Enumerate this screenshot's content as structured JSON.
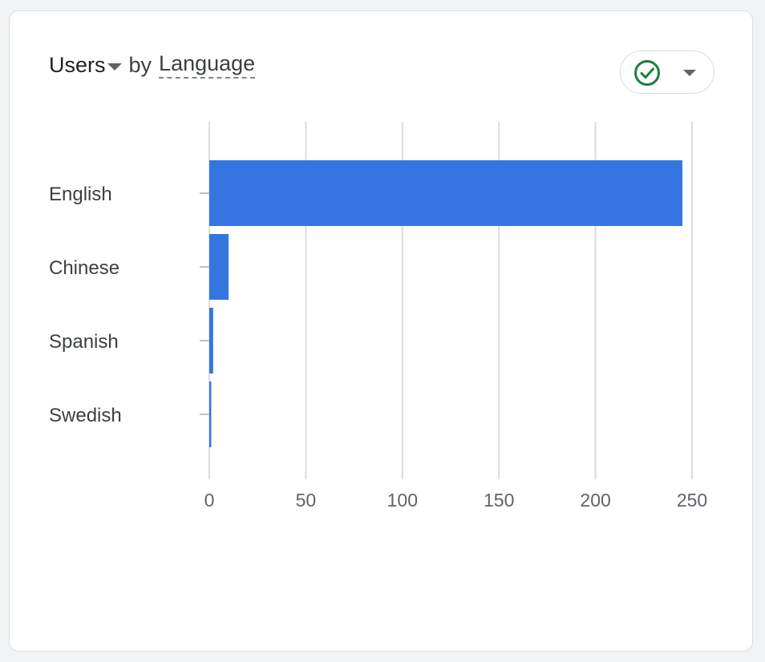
{
  "card": {
    "metric_label": "Users",
    "by_label": "by",
    "dimension_label": "Language",
    "status_icon": "check-circle-icon",
    "status_color": "#188038"
  },
  "chart_data": {
    "type": "bar",
    "orientation": "horizontal",
    "categories": [
      "English",
      "Chinese",
      "Spanish",
      "Swedish"
    ],
    "values": [
      245,
      10,
      2,
      1
    ],
    "xticks": [
      0,
      50,
      100,
      150,
      200,
      250
    ],
    "xlim": [
      0,
      250
    ],
    "grid": true,
    "bar_color": "#3575e0"
  }
}
